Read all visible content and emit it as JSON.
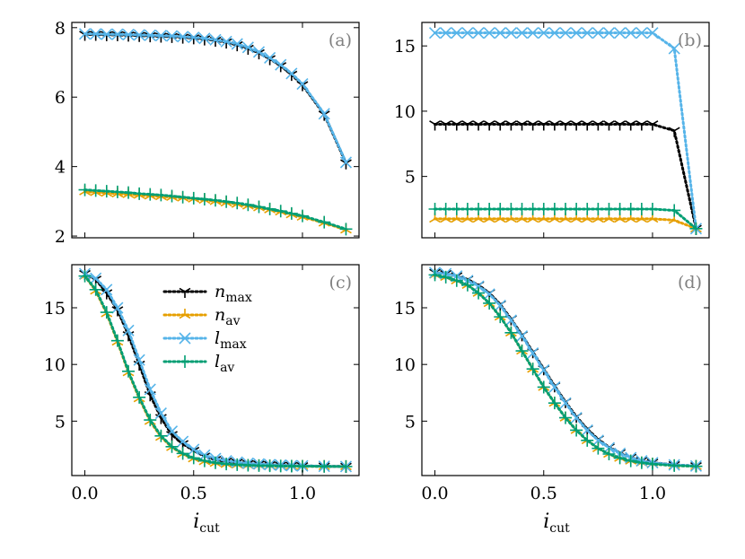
{
  "chart_data": [
    {
      "panel": "(a)",
      "type": "line",
      "xlim": [
        -0.06,
        1.26
      ],
      "ylim": [
        1.95,
        8.15
      ],
      "xticks": [
        "0.0",
        "0.5",
        "1.0"
      ],
      "xtick_values": [
        0,
        0.5,
        1.0
      ],
      "yticks": [
        "2",
        "4",
        "6",
        "8"
      ],
      "ytick_values": [
        2,
        4,
        6,
        8
      ],
      "x": [
        0.0,
        0.05,
        0.1,
        0.15,
        0.2,
        0.25,
        0.3,
        0.35,
        0.4,
        0.45,
        0.5,
        0.55,
        0.6,
        0.65,
        0.7,
        0.75,
        0.8,
        0.85,
        0.9,
        0.95,
        1.0,
        1.1,
        1.2
      ],
      "series": [
        {
          "name": "n_max",
          "values": [
            7.8,
            7.8,
            7.79,
            7.79,
            7.78,
            7.77,
            7.76,
            7.75,
            7.74,
            7.72,
            7.7,
            7.67,
            7.63,
            7.58,
            7.5,
            7.4,
            7.27,
            7.1,
            6.9,
            6.65,
            6.35,
            5.5,
            4.1
          ]
        },
        {
          "name": "n_av",
          "values": [
            3.28,
            3.26,
            3.24,
            3.22,
            3.2,
            3.18,
            3.16,
            3.14,
            3.12,
            3.1,
            3.07,
            3.04,
            3.0,
            2.96,
            2.92,
            2.87,
            2.82,
            2.76,
            2.7,
            2.62,
            2.55,
            2.38,
            2.18
          ]
        },
        {
          "name": "l_max",
          "values": [
            7.82,
            7.82,
            7.81,
            7.81,
            7.8,
            7.79,
            7.78,
            7.77,
            7.76,
            7.74,
            7.72,
            7.69,
            7.65,
            7.6,
            7.53,
            7.43,
            7.3,
            7.13,
            6.93,
            6.68,
            6.38,
            5.52,
            4.12
          ]
        },
        {
          "name": "l_av",
          "values": [
            3.33,
            3.31,
            3.29,
            3.27,
            3.25,
            3.22,
            3.2,
            3.18,
            3.15,
            3.12,
            3.09,
            3.06,
            3.03,
            2.99,
            2.95,
            2.9,
            2.84,
            2.78,
            2.72,
            2.65,
            2.58,
            2.4,
            2.2
          ]
        }
      ]
    },
    {
      "panel": "(b)",
      "type": "line",
      "xlim": [
        -0.06,
        1.26
      ],
      "ylim": [
        0.3,
        16.8
      ],
      "xticks": [
        "0.0",
        "0.5",
        "1.0"
      ],
      "xtick_values": [
        0,
        0.5,
        1.0
      ],
      "yticks": [
        "5",
        "10",
        "15"
      ],
      "ytick_values": [
        5,
        10,
        15
      ],
      "x": [
        0.0,
        0.05,
        0.1,
        0.15,
        0.2,
        0.25,
        0.3,
        0.35,
        0.4,
        0.45,
        0.5,
        0.55,
        0.6,
        0.65,
        0.7,
        0.75,
        0.8,
        0.85,
        0.9,
        0.95,
        1.0,
        1.1,
        1.2
      ],
      "series": [
        {
          "name": "n_max",
          "values": [
            9,
            9,
            9,
            9,
            9,
            9,
            9,
            9,
            9,
            9,
            9,
            9,
            9,
            9,
            9,
            9,
            9,
            9,
            9,
            9,
            9,
            8.5,
            1
          ]
        },
        {
          "name": "n_av",
          "values": [
            1.75,
            1.75,
            1.75,
            1.75,
            1.75,
            1.75,
            1.75,
            1.75,
            1.75,
            1.75,
            1.75,
            1.75,
            1.75,
            1.75,
            1.75,
            1.75,
            1.75,
            1.75,
            1.75,
            1.75,
            1.75,
            1.65,
            1
          ]
        },
        {
          "name": "l_max",
          "values": [
            16,
            16,
            16,
            16,
            16,
            16,
            16,
            16,
            16,
            16,
            16,
            16,
            16,
            16,
            16,
            16,
            16,
            16,
            16,
            16,
            16,
            14.8,
            1
          ]
        },
        {
          "name": "l_av",
          "values": [
            2.5,
            2.5,
            2.5,
            2.5,
            2.5,
            2.5,
            2.5,
            2.5,
            2.5,
            2.5,
            2.5,
            2.5,
            2.5,
            2.5,
            2.5,
            2.5,
            2.5,
            2.5,
            2.5,
            2.5,
            2.5,
            2.4,
            1
          ]
        }
      ]
    },
    {
      "panel": "(c)",
      "type": "line",
      "xlim": [
        -0.06,
        1.26
      ],
      "ylim": [
        0.2,
        18.8
      ],
      "xticks": [
        "0.0",
        "0.5",
        "1.0"
      ],
      "xtick_values": [
        0,
        0.5,
        1.0
      ],
      "yticks": [
        "5",
        "10",
        "15"
      ],
      "ytick_values": [
        5,
        10,
        15
      ],
      "x": [
        0.0,
        0.05,
        0.1,
        0.15,
        0.2,
        0.25,
        0.3,
        0.35,
        0.4,
        0.45,
        0.5,
        0.55,
        0.6,
        0.65,
        0.7,
        0.75,
        0.8,
        0.85,
        0.9,
        0.95,
        1.0,
        1.1,
        1.2
      ],
      "series": [
        {
          "name": "n_max",
          "values": [
            18,
            17.5,
            16.3,
            14.8,
            12.6,
            10,
            7.3,
            5.3,
            3.8,
            3,
            2.4,
            1.9,
            1.6,
            1.45,
            1.35,
            1.25,
            1.2,
            1.15,
            1.1,
            1.08,
            1.05,
            1.02,
            1
          ]
        },
        {
          "name": "n_av",
          "values": [
            17.8,
            16.5,
            14.5,
            12,
            9.3,
            7,
            5,
            3.6,
            2.7,
            2.1,
            1.7,
            1.45,
            1.3,
            1.2,
            1.15,
            1.1,
            1.08,
            1.05,
            1.04,
            1.03,
            1.02,
            1.01,
            1
          ]
        },
        {
          "name": "l_max",
          "values": [
            18,
            17.6,
            16.6,
            15,
            13,
            10.4,
            7.8,
            5.7,
            4.1,
            3.2,
            2.5,
            2,
            1.7,
            1.5,
            1.38,
            1.28,
            1.22,
            1.16,
            1.12,
            1.08,
            1.06,
            1.02,
            1
          ]
        },
        {
          "name": "l_av",
          "values": [
            17.8,
            16.6,
            14.6,
            12.1,
            9.4,
            7.1,
            5.1,
            3.7,
            2.75,
            2.15,
            1.75,
            1.5,
            1.33,
            1.22,
            1.16,
            1.11,
            1.08,
            1.06,
            1.04,
            1.03,
            1.02,
            1.01,
            1
          ]
        }
      ]
    },
    {
      "panel": "(d)",
      "type": "line",
      "xlim": [
        -0.06,
        1.26
      ],
      "ylim": [
        0.2,
        18.8
      ],
      "xticks": [
        "0.0",
        "0.5",
        "1.0"
      ],
      "xtick_values": [
        0,
        0.5,
        1.0
      ],
      "yticks": [
        "5",
        "10",
        "15"
      ],
      "ytick_values": [
        5,
        10,
        15
      ],
      "x": [
        0.0,
        0.05,
        0.1,
        0.15,
        0.2,
        0.25,
        0.3,
        0.35,
        0.4,
        0.45,
        0.5,
        0.55,
        0.6,
        0.65,
        0.7,
        0.75,
        0.8,
        0.85,
        0.9,
        0.95,
        1.0,
        1.1,
        1.2
      ],
      "series": [
        {
          "name": "n_max",
          "values": [
            18.1,
            18,
            17.8,
            17.5,
            17,
            16.3,
            15.3,
            14,
            12.6,
            11.1,
            9.6,
            8.1,
            6.7,
            5.4,
            4.3,
            3.4,
            2.7,
            2.2,
            1.8,
            1.5,
            1.35,
            1.15,
            1.05
          ]
        },
        {
          "name": "n_av",
          "values": [
            17.9,
            17.7,
            17.4,
            17,
            16.3,
            15.4,
            14.2,
            12.8,
            11.2,
            9.6,
            8,
            6.6,
            5.3,
            4.2,
            3.3,
            2.6,
            2.1,
            1.75,
            1.5,
            1.33,
            1.22,
            1.08,
            1.02
          ]
        },
        {
          "name": "l_max",
          "values": [
            18.1,
            18,
            17.8,
            17.4,
            16.9,
            16.2,
            15.2,
            13.9,
            12.5,
            11,
            9.5,
            8,
            6.6,
            5.3,
            4.2,
            3.3,
            2.65,
            2.15,
            1.78,
            1.5,
            1.33,
            1.14,
            1.05
          ]
        },
        {
          "name": "l_av",
          "values": [
            17.9,
            17.7,
            17.4,
            17,
            16.3,
            15.4,
            14.2,
            12.8,
            11.2,
            9.6,
            8,
            6.6,
            5.3,
            4.2,
            3.3,
            2.6,
            2.1,
            1.75,
            1.5,
            1.33,
            1.22,
            1.08,
            1.02
          ]
        }
      ]
    }
  ],
  "series_styles": {
    "n_max": {
      "color": "#000000",
      "marker": "tri_down"
    },
    "n_av": {
      "color": "#E69F00",
      "marker": "tri_up"
    },
    "l_max": {
      "color": "#56B4E9",
      "marker": "x"
    },
    "l_av": {
      "color": "#009E73",
      "marker": "plus"
    }
  },
  "legend": {
    "panel": "(c)",
    "entries": [
      {
        "series": "n_max",
        "base": "n",
        "sub": "max"
      },
      {
        "series": "n_av",
        "base": "n",
        "sub": "av"
      },
      {
        "series": "l_max",
        "base": "l",
        "sub": "max"
      },
      {
        "series": "l_av",
        "base": "l",
        "sub": "av"
      }
    ]
  },
  "xlabel": {
    "base": "i",
    "sub": "cut"
  }
}
